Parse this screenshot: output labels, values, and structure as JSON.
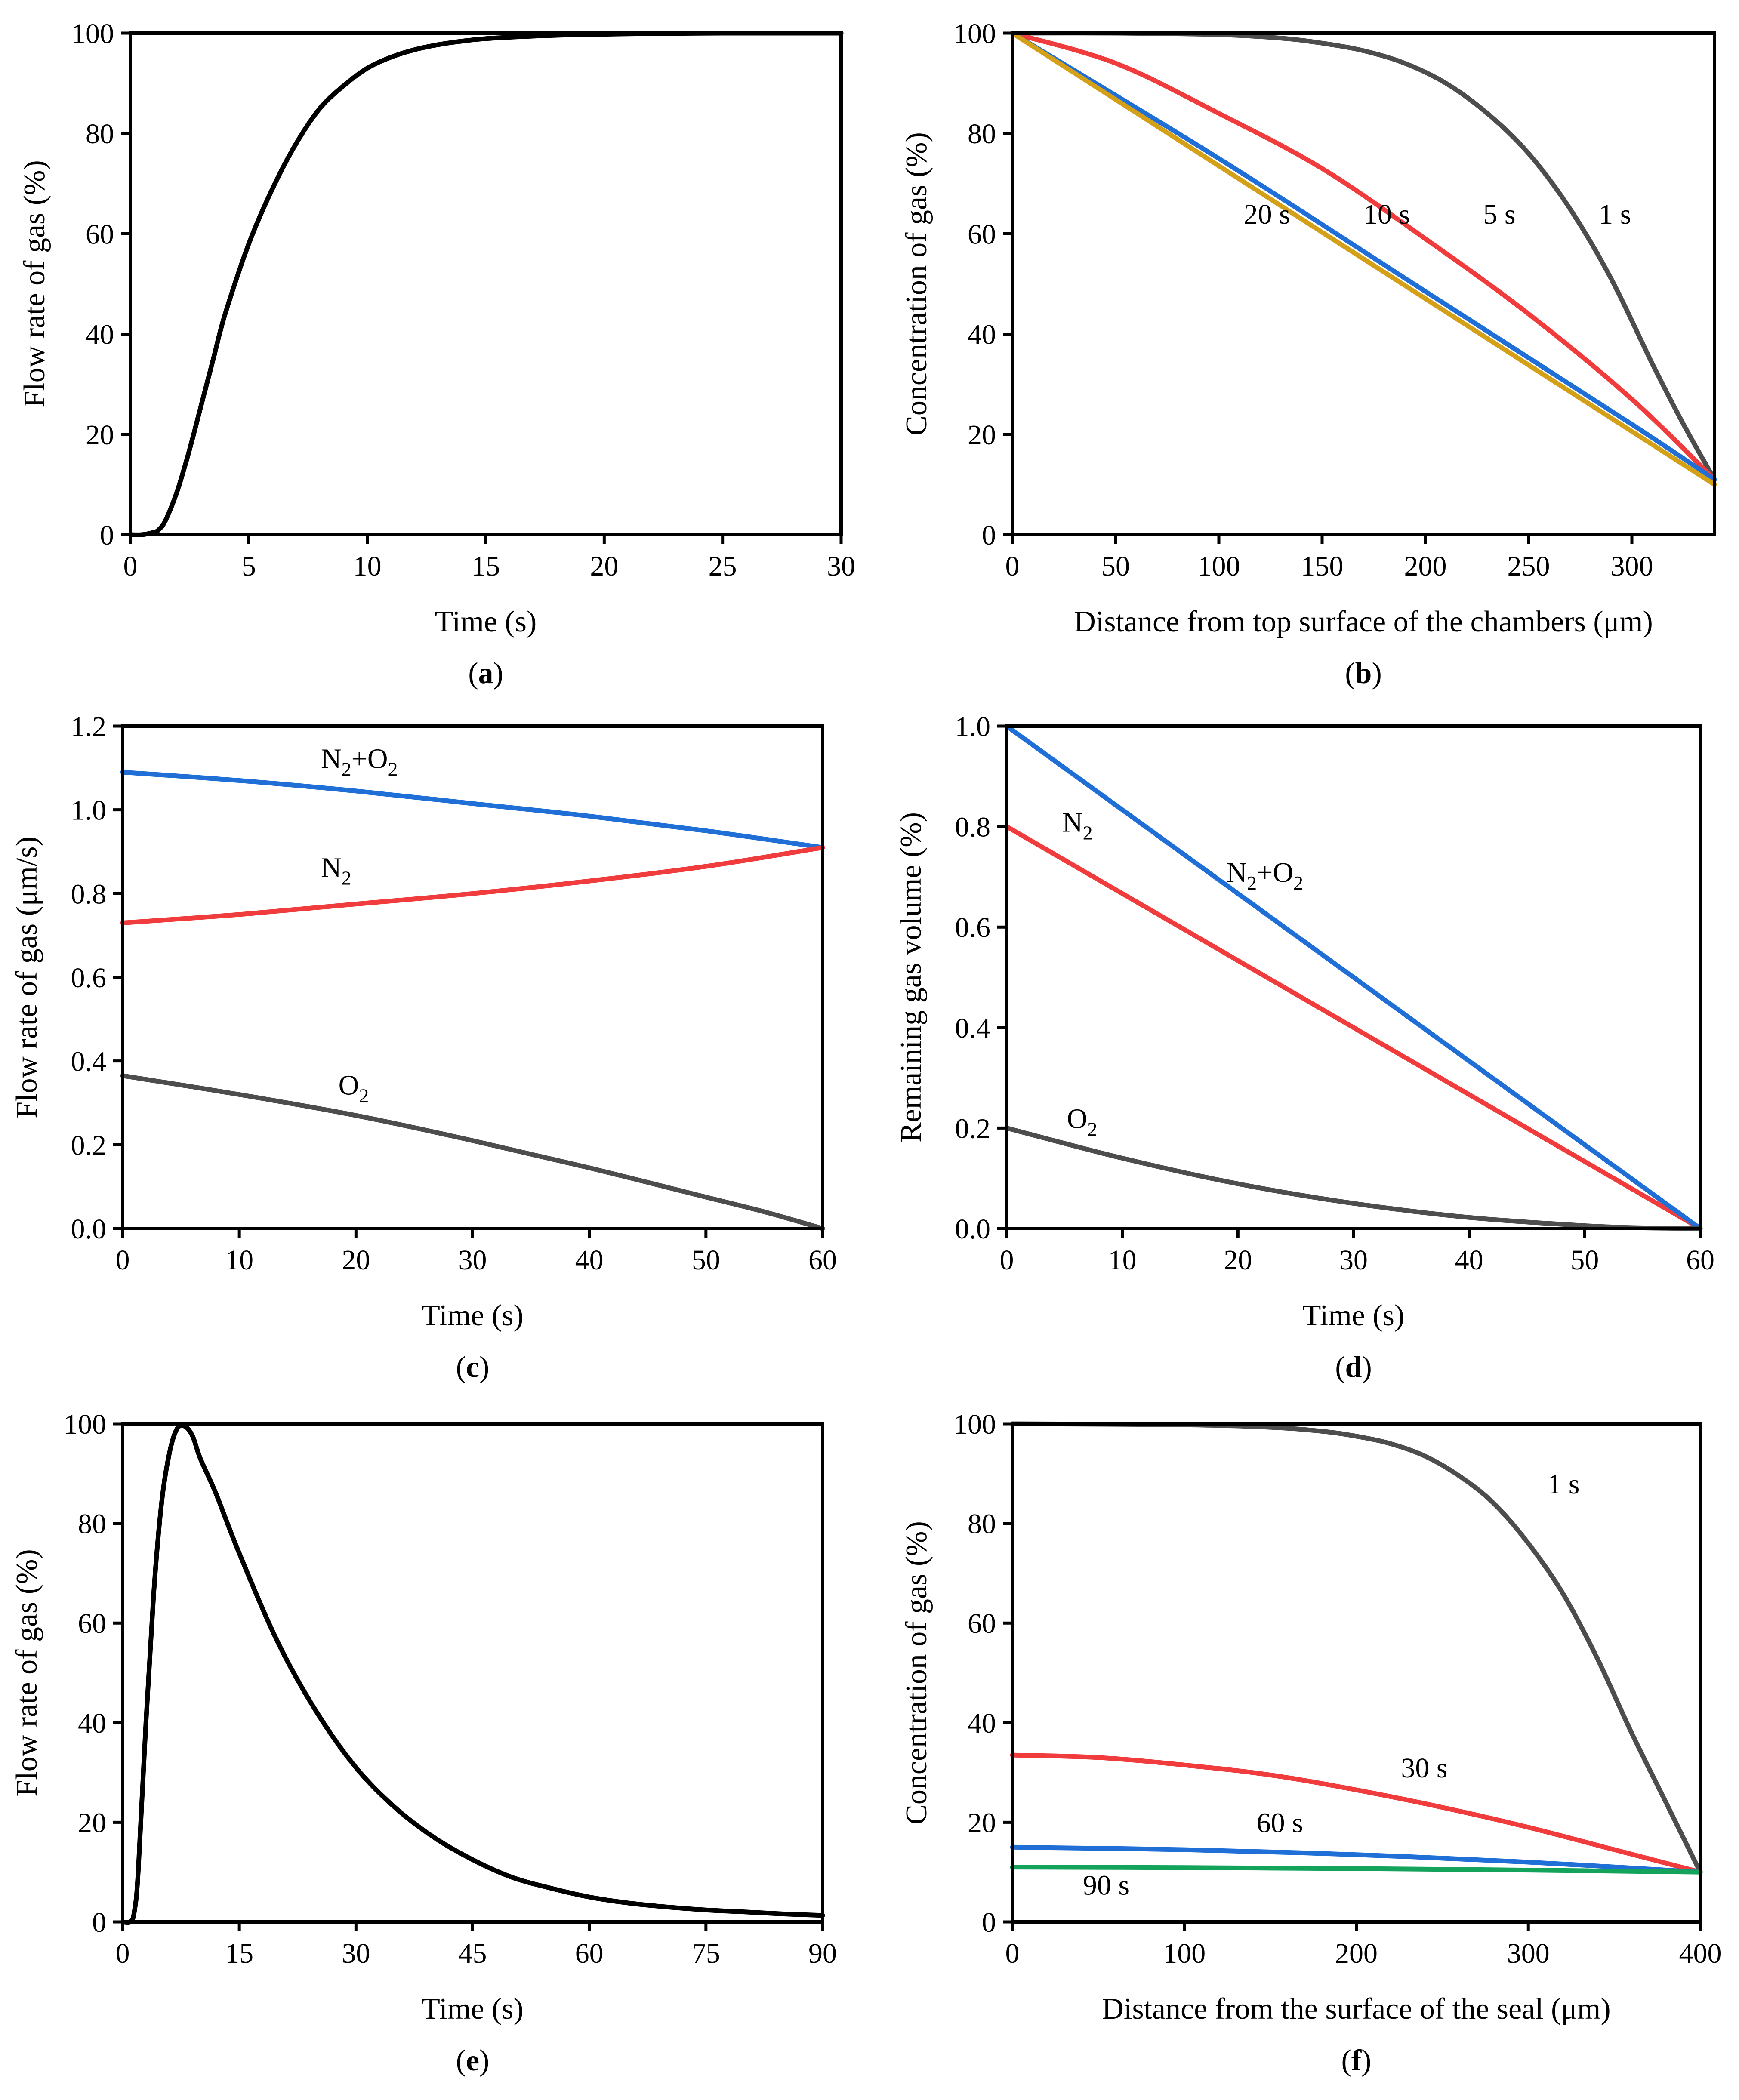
{
  "chart_data": [
    {
      "id": "a",
      "panel_label": "(a)",
      "panel_letter": "a",
      "type": "line",
      "xlabel": "Time (s)",
      "ylabel": "Flow rate of gas (%)",
      "xlim": [
        0,
        30
      ],
      "ylim": [
        0,
        100
      ],
      "xticks": [
        0,
        5,
        10,
        15,
        20,
        25,
        30
      ],
      "yticks": [
        0,
        20,
        40,
        60,
        80,
        100
      ],
      "grid": false,
      "series": [
        {
          "color": "#000000",
          "x": [
            0,
            0.5,
            1,
            1.2,
            1.5,
            2,
            2.5,
            3,
            3.5,
            4,
            5,
            6,
            7,
            8,
            9,
            10,
            11,
            12,
            13,
            14,
            15,
            17,
            19,
            21,
            23,
            25,
            27,
            30
          ],
          "y": [
            0,
            0,
            0.5,
            1,
            3,
            9,
            17,
            26,
            35,
            44,
            58,
            69,
            78,
            85,
            89.5,
            93,
            95.2,
            96.7,
            97.7,
            98.4,
            98.9,
            99.4,
            99.7,
            99.85,
            99.95,
            100,
            100,
            100
          ]
        }
      ]
    },
    {
      "id": "b",
      "panel_label": "(b)",
      "panel_letter": "b",
      "type": "line",
      "xlabel": "Distance from top surface of the chambers (μm)",
      "ylabel": "Concentration of gas (%)",
      "xlim": [
        0,
        340
      ],
      "ylim": [
        0,
        100
      ],
      "xticks": [
        0,
        50,
        100,
        150,
        200,
        250,
        300
      ],
      "yticks": [
        0,
        20,
        40,
        60,
        80,
        100
      ],
      "grid": false,
      "series": [
        {
          "name": "1 s",
          "color": "#4d4d4d",
          "label_at": [
            284,
            62
          ],
          "x": [
            0,
            50,
            100,
            130,
            150,
            170,
            190,
            210,
            230,
            250,
            270,
            290,
            310,
            325,
            340
          ],
          "y": [
            100,
            100,
            99.7,
            99,
            98,
            96.5,
            94,
            90,
            84,
            76,
            65,
            51,
            34,
            22,
            11
          ]
        },
        {
          "name": "5 s",
          "color": "#f03c3c",
          "label_at": [
            228,
            62
          ],
          "x": [
            0,
            50,
            100,
            150,
            200,
            250,
            300,
            340
          ],
          "y": [
            100,
            94,
            84,
            73,
            59,
            44,
            27,
            11
          ]
        },
        {
          "name": "10 s",
          "color": "#1f6fd6",
          "label_at": [
            170,
            62
          ],
          "x": [
            0,
            100,
            200,
            300,
            340
          ],
          "y": [
            100,
            75,
            48.5,
            22,
            11
          ]
        },
        {
          "name": "20 s",
          "color": "#d4a017",
          "label_at": [
            112,
            62
          ],
          "x": [
            0,
            340
          ],
          "y": [
            100,
            10
          ]
        }
      ]
    },
    {
      "id": "c",
      "panel_label": "(c)",
      "panel_letter": "c",
      "type": "line",
      "xlabel": "Time (s)",
      "ylabel": "Flow rate of gas (μm/s)",
      "xlim": [
        0,
        60
      ],
      "ylim": [
        0,
        1.2
      ],
      "xticks": [
        0,
        10,
        20,
        30,
        40,
        50,
        60
      ],
      "yticks": [
        0.0,
        0.2,
        0.4,
        0.6,
        0.8,
        1.0,
        1.2
      ],
      "ytick_decimals": 1,
      "grid": false,
      "series": [
        {
          "name": "N2+O2",
          "label_main": "N",
          "label_parts": [
            "N",
            "2",
            "+O",
            "2"
          ],
          "color": "#1f6fd6",
          "label_at": [
            17,
            1.1
          ],
          "x": [
            0,
            10,
            20,
            30,
            40,
            50,
            60
          ],
          "y": [
            1.09,
            1.07,
            1.045,
            1.015,
            0.985,
            0.95,
            0.91
          ]
        },
        {
          "name": "N2",
          "label_parts": [
            "N",
            "2"
          ],
          "color": "#f03c3c",
          "label_at": [
            17,
            0.84
          ],
          "x": [
            0,
            10,
            20,
            30,
            40,
            50,
            60
          ],
          "y": [
            0.73,
            0.75,
            0.775,
            0.8,
            0.83,
            0.865,
            0.91
          ]
        },
        {
          "name": "O2",
          "label_parts": [
            "O",
            "2"
          ],
          "color": "#4d4d4d",
          "label_at": [
            18.5,
            0.32
          ],
          "x": [
            0,
            10,
            20,
            30,
            40,
            50,
            55,
            60
          ],
          "y": [
            0.365,
            0.32,
            0.27,
            0.21,
            0.145,
            0.075,
            0.04,
            0
          ]
        }
      ]
    },
    {
      "id": "d",
      "panel_label": "(d)",
      "panel_letter": "d",
      "type": "line",
      "xlabel": "Time (s)",
      "ylabel": "Remaining gas volume (%)",
      "xlim": [
        0,
        60
      ],
      "ylim": [
        0,
        1.0
      ],
      "xticks": [
        0,
        10,
        20,
        30,
        40,
        50,
        60
      ],
      "yticks": [
        0.0,
        0.2,
        0.4,
        0.6,
        0.8,
        1.0
      ],
      "ytick_decimals": 1,
      "grid": false,
      "series": [
        {
          "name": "N2",
          "label_parts": [
            "N",
            "2"
          ],
          "color": "#f03c3c",
          "label_at": [
            4.8,
            0.79
          ],
          "x": [
            0,
            60
          ],
          "y": [
            0.8,
            0
          ]
        },
        {
          "name": "N2+O2",
          "label_parts": [
            "N",
            "2",
            "+O",
            "2"
          ],
          "color": "#1f6fd6",
          "label_at": [
            19,
            0.69
          ],
          "x": [
            0,
            60
          ],
          "y": [
            1.0,
            0
          ]
        },
        {
          "name": "O2",
          "label_parts": [
            "O",
            "2"
          ],
          "color": "#4d4d4d",
          "label_at": [
            5.2,
            0.2
          ],
          "x": [
            0,
            10,
            20,
            30,
            40,
            50,
            55,
            60
          ],
          "y": [
            0.2,
            0.14,
            0.089,
            0.05,
            0.022,
            0.0056,
            0.0014,
            0
          ]
        }
      ]
    },
    {
      "id": "e",
      "panel_label": "(e)",
      "panel_letter": "e",
      "type": "line",
      "xlabel": "Time (s)",
      "ylabel": "Flow rate of gas (%)",
      "xlim": [
        0,
        90
      ],
      "ylim": [
        0,
        100
      ],
      "xticks": [
        0,
        15,
        30,
        45,
        60,
        75,
        90
      ],
      "yticks": [
        0,
        20,
        40,
        60,
        80,
        100
      ],
      "grid": false,
      "series": [
        {
          "color": "#000000",
          "x": [
            0,
            1,
            1.5,
            2,
            3,
            4,
            5,
            6,
            7,
            8,
            9,
            10,
            12,
            15,
            20,
            25,
            30,
            35,
            40,
            45,
            50,
            55,
            60,
            65,
            70,
            75,
            80,
            85,
            90
          ],
          "y": [
            0,
            0,
            2,
            10,
            40,
            66,
            84,
            94,
            99,
            99.5,
            97.5,
            93,
            86,
            74,
            56,
            42,
            31,
            23,
            17,
            12.5,
            9,
            6.8,
            5,
            3.8,
            3,
            2.4,
            2,
            1.6,
            1.3
          ]
        }
      ]
    },
    {
      "id": "f",
      "panel_label": "(f)",
      "panel_letter": "f",
      "type": "line",
      "xlabel": "Distance from the surface of the seal (μm)",
      "ylabel": "Concentration of gas (%)",
      "xlim": [
        0,
        400
      ],
      "ylim": [
        0,
        100
      ],
      "xticks": [
        0,
        100,
        200,
        300,
        400
      ],
      "yticks": [
        0,
        20,
        40,
        60,
        80,
        100
      ],
      "grid": false,
      "series": [
        {
          "name": "1 s",
          "color": "#4d4d4d",
          "label_at": [
            311,
            86
          ],
          "x": [
            0,
            100,
            150,
            180,
            200,
            220,
            240,
            260,
            280,
            300,
            320,
            340,
            360,
            380,
            400
          ],
          "y": [
            100,
            99.8,
            99.3,
            98.5,
            97.5,
            96,
            93.5,
            89.5,
            84,
            76,
            66,
            53,
            38,
            24,
            10
          ]
        },
        {
          "name": "30 s",
          "color": "#f03c3c",
          "label_at": [
            226,
            29
          ],
          "x": [
            0,
            50,
            100,
            150,
            200,
            250,
            300,
            350,
            400
          ],
          "y": [
            33.5,
            33,
            31.5,
            29.5,
            26.5,
            23,
            19,
            14.5,
            10
          ]
        },
        {
          "name": "60 s",
          "color": "#1f6fd6",
          "label_at": [
            142,
            18
          ],
          "x": [
            0,
            100,
            200,
            300,
            400
          ],
          "y": [
            15,
            14.5,
            13.5,
            12,
            10
          ]
        },
        {
          "name": "90 s",
          "color": "#13a35b",
          "label_at": [
            41,
            5.5
          ],
          "x": [
            0,
            100,
            200,
            300,
            400
          ],
          "y": [
            11,
            10.9,
            10.7,
            10.4,
            10
          ]
        }
      ]
    }
  ]
}
